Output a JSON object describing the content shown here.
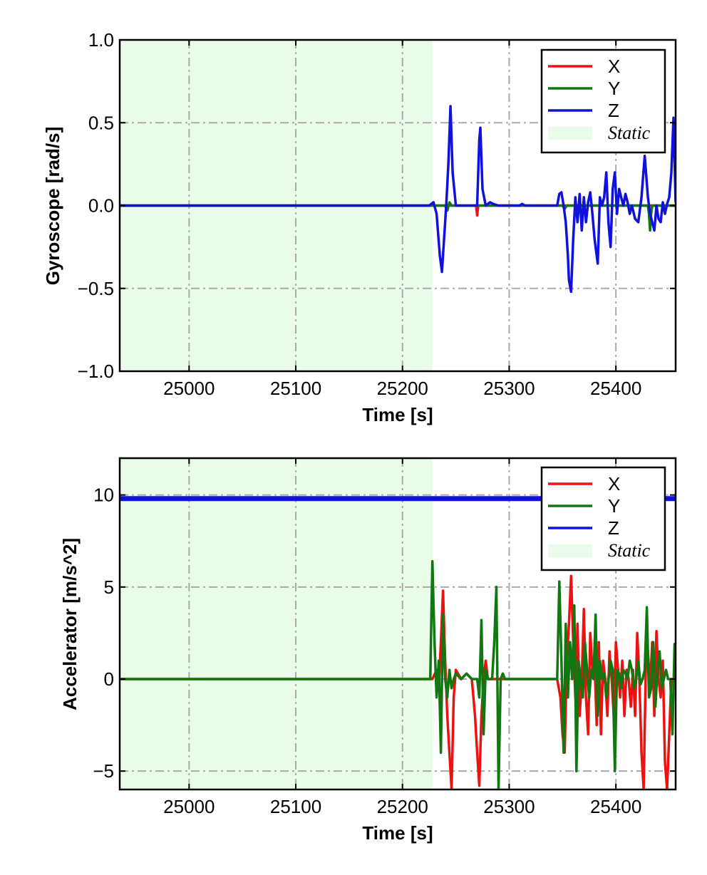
{
  "chart_data": [
    {
      "type": "line",
      "xlabel": "Time [s]",
      "ylabel": "Gyroscope [rad/s]",
      "xlim": [
        24935,
        25456
      ],
      "ylim": [
        -1.0,
        1.0
      ],
      "x_ticks": [
        25000,
        25100,
        25200,
        25300,
        25400
      ],
      "x_tick_labels": [
        "25000",
        "25100",
        "25200",
        "25300",
        "25400"
      ],
      "y_ticks": [
        -1.0,
        -0.5,
        0.0,
        0.5,
        1.0
      ],
      "y_tick_labels": [
        "−1.0",
        "−0.5",
        "0.0",
        "0.5",
        "1.0"
      ],
      "grid": true,
      "static_region": {
        "label": "Static",
        "x": [
          24935,
          25228
        ],
        "color": "#e8fce8"
      },
      "legend": {
        "placement": "top-right",
        "entries": [
          "X",
          "Y",
          "Z",
          "Static"
        ]
      },
      "series": [
        {
          "name": "X",
          "color": "#ee1111",
          "x": [
            24935,
            25228,
            25269,
            25270,
            25271,
            25272,
            25456
          ],
          "y": [
            0,
            0,
            0,
            -0.06,
            0,
            0,
            0
          ]
        },
        {
          "name": "Y",
          "color": "#117711",
          "x": [
            24935,
            25228,
            25240,
            25242,
            25244,
            25246,
            25350,
            25352,
            25354,
            25430,
            25431,
            25432,
            25433,
            25434,
            25456
          ],
          "y": [
            0,
            0,
            0,
            -0.03,
            0.02,
            0,
            0,
            -0.02,
            0,
            0,
            -0.05,
            -0.15,
            -0.05,
            0,
            0
          ]
        },
        {
          "name": "Z",
          "color": "#1111dd",
          "x": [
            24935,
            25225,
            25229,
            25232,
            25235,
            25237,
            25239,
            25241,
            25243,
            25245,
            25247,
            25250,
            25270,
            25272,
            25273,
            25275,
            25278,
            25282,
            25285,
            25290,
            25310,
            25312,
            25315,
            25345,
            25347,
            25349,
            25351,
            25353,
            25355,
            25356,
            25358,
            25360,
            25362,
            25364,
            25366,
            25368,
            25370,
            25372,
            25374,
            25376,
            25378,
            25380,
            25383,
            25385,
            25387,
            25389,
            25391,
            25393,
            25395,
            25397,
            25399,
            25401,
            25403,
            25405,
            25407,
            25409,
            25411,
            25413,
            25415,
            25418,
            25421,
            25424,
            25427,
            25430,
            25432,
            25434,
            25436,
            25438,
            25440,
            25442,
            25444,
            25446,
            25448,
            25450,
            25452,
            25454,
            25456
          ],
          "y": [
            0,
            0,
            0.02,
            -0.05,
            -0.3,
            -0.4,
            -0.2,
            0,
            0.25,
            0.6,
            0.2,
            0,
            0,
            0.4,
            0.47,
            0.1,
            0,
            0.02,
            0.01,
            0,
            0,
            0.01,
            0,
            0,
            0.07,
            0.08,
            0,
            -0.1,
            -0.3,
            -0.45,
            -0.52,
            -0.2,
            0.05,
            -0.1,
            0.07,
            -0.15,
            0.05,
            -0.1,
            0.02,
            0.08,
            -0.05,
            -0.2,
            -0.35,
            0.05,
            0,
            0.05,
            0.2,
            -0.1,
            -0.25,
            0.1,
            0.2,
            -0.05,
            0.1,
            0.05,
            0,
            0.07,
            0.02,
            -0.05,
            0,
            -0.08,
            -0.1,
            0.05,
            0.3,
            0.05,
            -0.05,
            -0.1,
            -0.15,
            0,
            -0.08,
            -0.1,
            0.02,
            -0.05,
            0.01,
            0.05,
            0.2,
            0.53,
            0.02
          ]
        }
      ]
    },
    {
      "type": "line",
      "xlabel": "Time [s]",
      "ylabel": "Accelerator [m/s^2]",
      "xlim": [
        24935,
        25456
      ],
      "ylim": [
        -6,
        12
      ],
      "x_ticks": [
        25000,
        25100,
        25200,
        25300,
        25400
      ],
      "x_tick_labels": [
        "25000",
        "25100",
        "25200",
        "25300",
        "25400"
      ],
      "y_ticks": [
        -5,
        0,
        5,
        10
      ],
      "y_tick_labels": [
        "−5",
        "0",
        "5",
        "10"
      ],
      "grid": true,
      "static_region": {
        "label": "Static",
        "x": [
          24935,
          25228
        ],
        "color": "#e8fce8"
      },
      "legend": {
        "placement": "top-right",
        "entries": [
          "X",
          "Y",
          "Z",
          "Static"
        ]
      },
      "series": [
        {
          "name": "X",
          "color": "#ee1111",
          "x": [
            24935,
            25228,
            25232,
            25234,
            25236,
            25238,
            25240,
            25242,
            25244,
            25246,
            25248,
            25250,
            25255,
            25260,
            25265,
            25268,
            25270,
            25272,
            25274,
            25276,
            25278,
            25280,
            25285,
            25290,
            25300,
            25345,
            25348,
            25350,
            25352,
            25354,
            25356,
            25358,
            25360,
            25362,
            25364,
            25366,
            25368,
            25370,
            25372,
            25374,
            25376,
            25378,
            25380,
            25382,
            25384,
            25386,
            25388,
            25390,
            25392,
            25394,
            25396,
            25398,
            25400,
            25402,
            25404,
            25406,
            25408,
            25410,
            25412,
            25414,
            25416,
            25418,
            25420,
            25422,
            25424,
            25426,
            25428,
            25430,
            25432,
            25434,
            25436,
            25438,
            25440,
            25442,
            25444,
            25446,
            25448,
            25450,
            25452,
            25454,
            25456
          ],
          "y": [
            0,
            0,
            0.5,
            -0.5,
            2,
            4.8,
            1,
            -2,
            -4,
            -6,
            -1,
            0.5,
            0,
            0.3,
            0,
            -2,
            -4,
            -5.8,
            -2,
            0,
            1,
            0,
            0,
            0,
            0,
            0,
            -1,
            -3,
            -4,
            1,
            3,
            5.6,
            2,
            -1,
            3,
            -2,
            0,
            3.8,
            -1,
            -3,
            2.5,
            0.5,
            1,
            -2.5,
            2,
            -3,
            1,
            0,
            -2,
            1.5,
            0,
            -2,
            2,
            0.5,
            -1,
            1,
            -2,
            0.5,
            0,
            -1.5,
            0.5,
            -2,
            2.5,
            0,
            -4,
            -6,
            0.5,
            1.5,
            -0.5,
            2,
            -2,
            2.6,
            0,
            -1,
            1,
            -4.5,
            -6,
            -3,
            0,
            0,
            0
          ]
        },
        {
          "name": "Y",
          "color": "#117711",
          "x": [
            24935,
            25226,
            25228,
            25230,
            25232,
            25234,
            25236,
            25238,
            25240,
            25242,
            25244,
            25246,
            25248,
            25250,
            25255,
            25260,
            25265,
            25270,
            25272,
            25274,
            25276,
            25278,
            25280,
            25284,
            25286,
            25288,
            25290,
            25292,
            25294,
            25296,
            25300,
            25345,
            25347,
            25349,
            25351,
            25353,
            25355,
            25357,
            25359,
            25361,
            25363,
            25365,
            25367,
            25369,
            25371,
            25373,
            25375,
            25377,
            25379,
            25381,
            25383,
            25385,
            25387,
            25389,
            25391,
            25393,
            25395,
            25397,
            25399,
            25401,
            25403,
            25405,
            25407,
            25409,
            25411,
            25413,
            25415,
            25417,
            25419,
            25421,
            25423,
            25425,
            25427,
            25429,
            25431,
            25433,
            25435,
            25437,
            25439,
            25441,
            25443,
            25445,
            25447,
            25449,
            25451,
            25453,
            25455,
            25456
          ],
          "y": [
            0,
            0,
            6.4,
            2,
            -1,
            1,
            -4,
            3.5,
            0,
            -1,
            0.5,
            -0.5,
            0,
            0.3,
            0,
            0.3,
            0,
            0,
            -1,
            3.2,
            -3,
            0.5,
            0,
            0,
            2,
            5,
            -6,
            0,
            0.3,
            0,
            0,
            0,
            5.3,
            1,
            -4,
            3,
            -1,
            2,
            0,
            4,
            -5,
            1,
            0,
            -1,
            2,
            0.5,
            -1,
            0.5,
            0,
            3.5,
            -2,
            1,
            0,
            0.3,
            -1,
            0,
            1,
            0.5,
            -5,
            0.5,
            0.3,
            -0.5,
            0.5,
            0.3,
            0,
            1,
            0.5,
            -0.5,
            0,
            1,
            -0.3,
            0,
            0.5,
            3.9,
            -1,
            -0.5,
            2,
            -1.5,
            0.5,
            1.5,
            -0.5,
            0,
            0.5,
            0,
            0,
            -3,
            1.9,
            0
          ]
        },
        {
          "name": "Z",
          "color": "#1111dd",
          "x": [
            24935,
            25456
          ],
          "y": [
            9.8,
            9.8
          ]
        }
      ]
    }
  ]
}
